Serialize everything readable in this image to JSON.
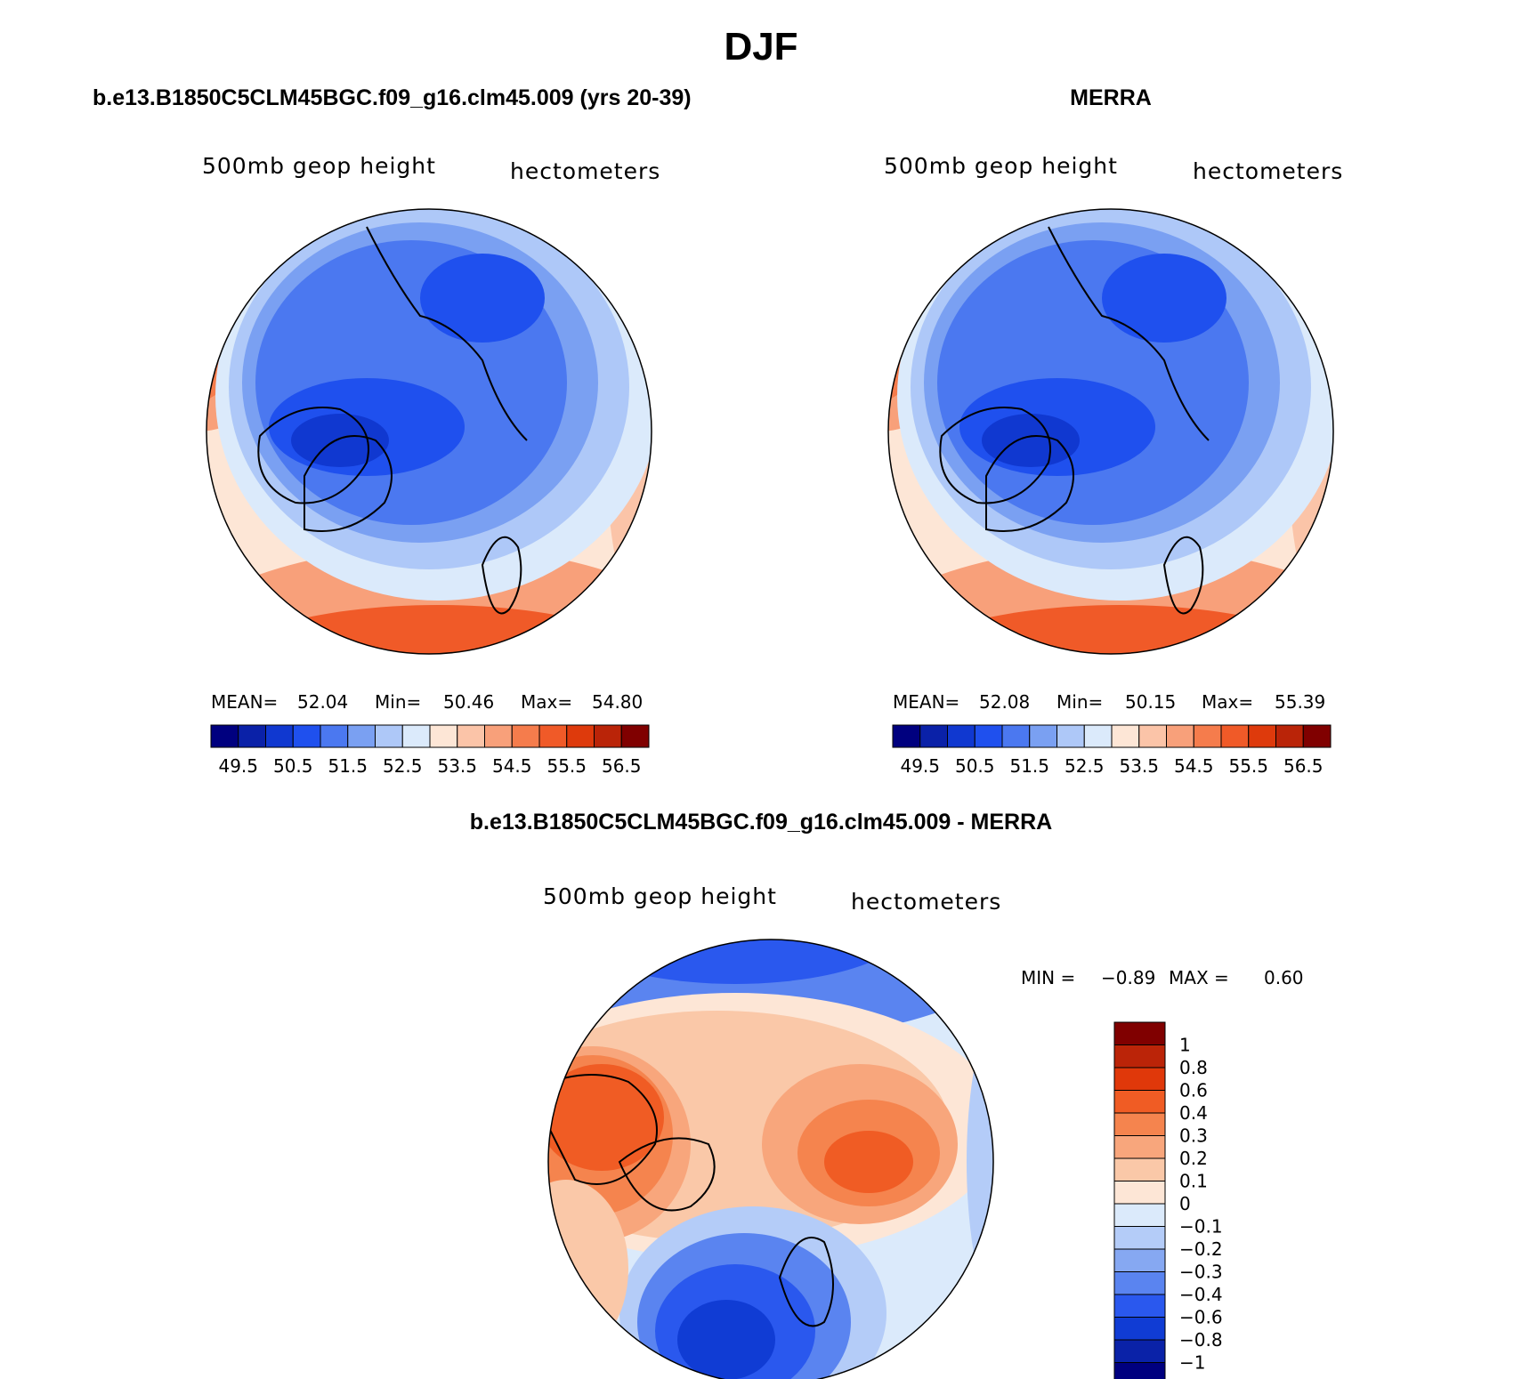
{
  "title": "DJF",
  "panels": [
    {
      "id": "model",
      "title": "b.e13.B1850C5CLM45BGC.f09_g16.clm45.009 (yrs 20-39)",
      "variable": "500mb geop height",
      "units": "hectometers",
      "stats": {
        "mean_label": "MEAN=",
        "mean": "52.04",
        "min_label": "Min=",
        "min": "50.46",
        "max_label": "Max=",
        "max": "54.80"
      },
      "colorbar_labels": [
        "49.5",
        "50.5",
        "51.5",
        "52.5",
        "53.5",
        "54.5",
        "55.5",
        "56.5"
      ]
    },
    {
      "id": "obs",
      "title": "MERRA",
      "variable": "500mb geop height",
      "units": "hectometers",
      "stats": {
        "mean_label": "MEAN=",
        "mean": "52.08",
        "min_label": "Min=",
        "min": "50.15",
        "max_label": "Max=",
        "max": "55.39"
      },
      "colorbar_labels": [
        "49.5",
        "50.5",
        "51.5",
        "52.5",
        "53.5",
        "54.5",
        "55.5",
        "56.5"
      ]
    },
    {
      "id": "diff",
      "title": "b.e13.B1850C5CLM45BGC.f09_g16.clm45.009 - MERRA",
      "variable": "500mb geop height",
      "units": "hectometers",
      "stats": {
        "min_label": "MIN =",
        "min": "−0.89",
        "max_label": "MAX =",
        "max": "0.60"
      },
      "colorbar_labels": [
        "1",
        "0.8",
        "0.6",
        "0.4",
        "0.3",
        "0.2",
        "0.1",
        "0",
        "−0.1",
        "−0.2",
        "−0.3",
        "−0.4",
        "−0.6",
        "−0.8",
        "−1"
      ]
    }
  ],
  "colors": {
    "abs_scale": [
      "#00007f",
      "#0a21a8",
      "#1038d0",
      "#1f50ee",
      "#4b78f0",
      "#7aa0f2",
      "#aec8f8",
      "#dbeafb",
      "#fde6d6",
      "#fbc4a8",
      "#f8a07a",
      "#f57c4c",
      "#f05a28",
      "#de3a0c",
      "#ba2408",
      "#800000"
    ],
    "diff_scale": [
      "#800000",
      "#bb2408",
      "#e0380a",
      "#f05c24",
      "#f5844e",
      "#f8a67c",
      "#fac8a8",
      "#fde6d6",
      "#dbeafb",
      "#b4ccf8",
      "#86a8f2",
      "#5a84f0",
      "#2a58ee",
      "#103cd4",
      "#0a22a8",
      "#00007f"
    ]
  }
}
